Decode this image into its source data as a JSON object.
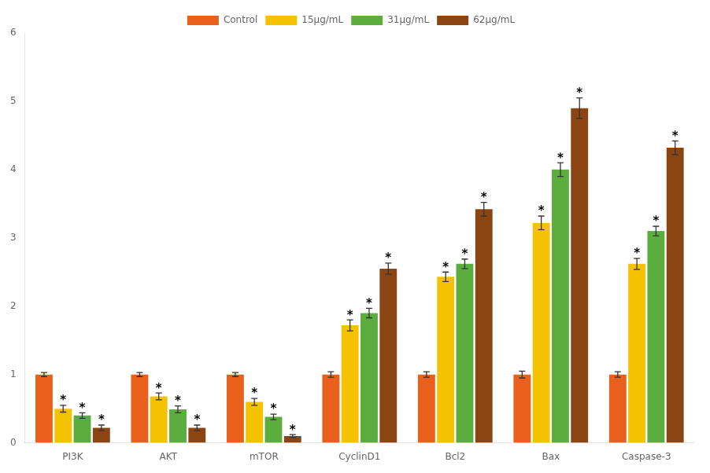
{
  "chart_data": {
    "type": "bar",
    "categories": [
      "PI3K",
      "AKT",
      "mTOR",
      "CyclinD1",
      "Bcl2",
      "Bax",
      "Caspase-3"
    ],
    "series": [
      {
        "name": "Control",
        "color": "#E8601C",
        "values": [
          1.0,
          1.0,
          1.0,
          1.0,
          1.0,
          1.0,
          1.0
        ],
        "errors": [
          0.03,
          0.03,
          0.03,
          0.04,
          0.04,
          0.05,
          0.04
        ]
      },
      {
        "name": "15μg/mL",
        "color": "#F5C200",
        "values": [
          0.5,
          0.68,
          0.6,
          1.72,
          2.43,
          3.22,
          2.62
        ],
        "errors": [
          0.05,
          0.05,
          0.05,
          0.08,
          0.07,
          0.1,
          0.08
        ]
      },
      {
        "name": "31μg/mL",
        "color": "#5BAD3E",
        "values": [
          0.4,
          0.49,
          0.38,
          1.9,
          2.62,
          4.0,
          3.1
        ],
        "errors": [
          0.04,
          0.05,
          0.04,
          0.07,
          0.07,
          0.1,
          0.07
        ]
      },
      {
        "name": "62μg/mL",
        "color": "#8B4513",
        "values": [
          0.22,
          0.22,
          0.1,
          2.55,
          3.42,
          4.9,
          4.32
        ],
        "errors": [
          0.04,
          0.04,
          0.02,
          0.08,
          0.1,
          0.15,
          0.1
        ]
      }
    ],
    "annotations": [
      {
        "text": "*",
        "series": "15μg/mL",
        "category": "PI3K"
      },
      {
        "text": "*",
        "series": "31μg/mL",
        "category": "PI3K"
      },
      {
        "text": "*",
        "series": "62μg/mL",
        "category": "PI3K"
      },
      {
        "text": "*",
        "series": "15μg/mL",
        "category": "AKT"
      },
      {
        "text": "*",
        "series": "31μg/mL",
        "category": "AKT"
      },
      {
        "text": "*",
        "series": "62μg/mL",
        "category": "AKT"
      },
      {
        "text": "*",
        "series": "15μg/mL",
        "category": "mTOR"
      },
      {
        "text": "*",
        "series": "31μg/mL",
        "category": "mTOR"
      },
      {
        "text": "*",
        "series": "62μg/mL",
        "category": "mTOR"
      },
      {
        "text": "*",
        "series": "15μg/mL",
        "category": "CyclinD1"
      },
      {
        "text": "*",
        "series": "31μg/mL",
        "category": "CyclinD1"
      },
      {
        "text": "*",
        "series": "62μg/mL",
        "category": "CyclinD1"
      },
      {
        "text": "*",
        "series": "15μg/mL",
        "category": "Bcl2"
      },
      {
        "text": "*",
        "series": "31μg/mL",
        "category": "Bcl2"
      },
      {
        "text": "*",
        "series": "62μg/mL",
        "category": "Bcl2"
      },
      {
        "text": "*",
        "series": "15μg/mL",
        "category": "Bax"
      },
      {
        "text": "*",
        "series": "31μg/mL",
        "category": "Bax"
      },
      {
        "text": "*",
        "series": "62μg/mL",
        "category": "Bax"
      },
      {
        "text": "*",
        "series": "15μg/mL",
        "category": "Caspase-3"
      },
      {
        "text": "*",
        "series": "31μg/mL",
        "category": "Caspase-3"
      },
      {
        "text": "*",
        "series": "62μg/mL",
        "category": "Caspase-3"
      }
    ],
    "ylim": [
      0,
      6
    ],
    "yticks": [
      0,
      1,
      2,
      3,
      4,
      5,
      6
    ],
    "grid": false,
    "legend": "top"
  }
}
